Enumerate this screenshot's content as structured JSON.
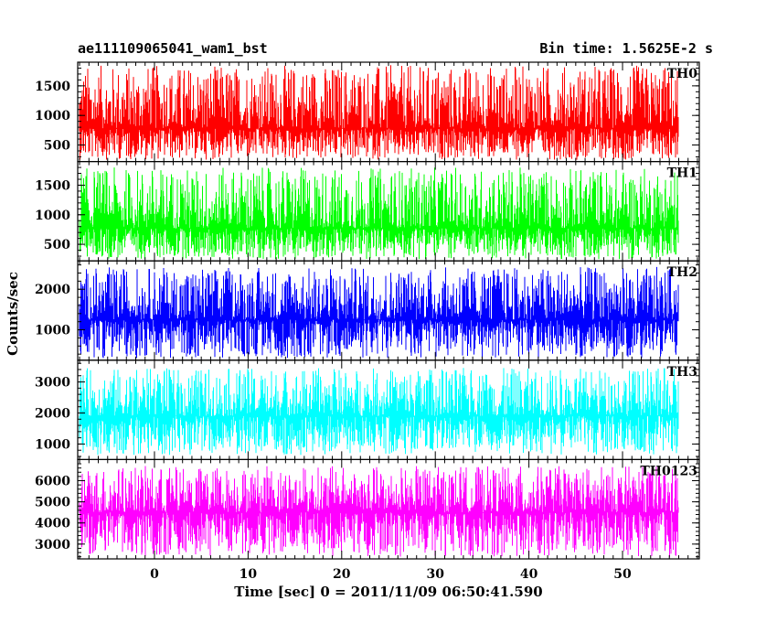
{
  "header": {
    "obs_name": "ae111109065041_wam1_bst",
    "bin_time": "Bin time: 1.5625E-2 s"
  },
  "colors": {
    "TH0": "#ff0000",
    "TH1": "#00ff00",
    "TH2": "#0000ff",
    "TH3": "#00ffff",
    "TH0123": "#ff00ff"
  },
  "chart_data": {
    "type": "line",
    "xlabel": "Time [sec] 0 = 2011/11/09 06:50:41.590",
    "ylabel": "Counts/sec",
    "xlim": [
      -8.2,
      58.2
    ],
    "xticks": [
      0,
      10,
      20,
      30,
      40,
      50
    ],
    "x_range": [
      -8,
      56
    ],
    "bin_time_s": 0.015625,
    "panels": [
      {
        "name": "TH0",
        "ylim": [
          220,
          1900
        ],
        "yticks": [
          500,
          1000,
          1500
        ],
        "mean": 780,
        "low": 400,
        "high": 1850,
        "min": 250
      },
      {
        "name": "TH1",
        "ylim": [
          220,
          1900
        ],
        "yticks": [
          500,
          1000,
          1500
        ],
        "mean": 770,
        "low": 380,
        "high": 1800,
        "min": 250
      },
      {
        "name": "TH2",
        "ylim": [
          250,
          2700
        ],
        "yticks": [
          1000,
          2000
        ],
        "mean": 1250,
        "low": 600,
        "high": 2550,
        "min": 300
      },
      {
        "name": "TH3",
        "ylim": [
          500,
          3700
        ],
        "yticks": [
          1000,
          2000,
          3000
        ],
        "mean": 1900,
        "low": 950,
        "high": 3450,
        "min": 650
      },
      {
        "name": "TH0123",
        "ylim": [
          2300,
          7000
        ],
        "yticks": [
          3000,
          4000,
          5000,
          6000
        ],
        "mean": 4500,
        "low": 2900,
        "high": 6700,
        "min": 2400
      }
    ]
  }
}
